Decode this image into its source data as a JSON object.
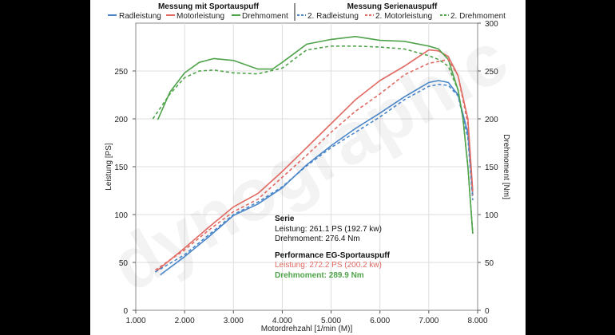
{
  "chart_data": {
    "type": "line",
    "title": "",
    "xlabel": "Motordrehzahl [1/min (M)]",
    "ylabel": "Leistung [PS]",
    "y2label": "Drehmoment [Nm]",
    "xlim": [
      1000,
      8000
    ],
    "ylim": [
      0,
      300
    ],
    "y2lim": [
      0,
      300
    ],
    "x_ticks": [
      "1.000",
      "2.000",
      "3.000",
      "4.000",
      "5.000",
      "6.000",
      "7.000",
      "8.000"
    ],
    "y_ticks": [
      "0",
      "50",
      "100",
      "150",
      "200",
      "250"
    ],
    "y2_ticks": [
      "0",
      "50",
      "100",
      "150",
      "200",
      "250",
      "300"
    ],
    "grid": true,
    "legend_groups": [
      {
        "title": "Messung mit Sportauspuff",
        "position": "top-left"
      },
      {
        "title": "Messung Serienauspuff",
        "position": "top-right"
      }
    ],
    "colors": {
      "rad": "#4a86c8",
      "motor": "#e06a62",
      "dreh": "#4fa34a"
    },
    "series": [
      {
        "name": "Radleistung",
        "axis": "left",
        "group": 0,
        "color": "#4a86c8",
        "dash": false,
        "x": [
          1500,
          2000,
          2500,
          3000,
          3500,
          4000,
          4500,
          5000,
          5500,
          6000,
          6500,
          7000,
          7200,
          7400,
          7600,
          7800,
          7900
        ],
        "y": [
          37,
          56,
          77,
          99,
          111,
          128,
          152,
          172,
          190,
          206,
          223,
          238,
          240,
          238,
          225,
          185,
          120
        ]
      },
      {
        "name": "Motorleistung",
        "axis": "left",
        "group": 0,
        "color": "#e06a62",
        "dash": false,
        "x": [
          1400,
          2000,
          2500,
          3000,
          3500,
          4000,
          4500,
          5000,
          5500,
          6000,
          6500,
          7000,
          7200,
          7400,
          7600,
          7800,
          7900
        ],
        "y": [
          40,
          65,
          87,
          108,
          122,
          145,
          170,
          195,
          220,
          240,
          255,
          272,
          271,
          265,
          245,
          200,
          125
        ]
      },
      {
        "name": "Drehmoment",
        "axis": "right",
        "group": 0,
        "color": "#4fa34a",
        "dash": false,
        "x": [
          1450,
          1700,
          2000,
          2300,
          2600,
          3000,
          3500,
          3800,
          4000,
          4500,
          5000,
          5500,
          6000,
          6500,
          7000,
          7200,
          7400,
          7600,
          7700,
          7800,
          7900
        ],
        "y": [
          199,
          228,
          248,
          259,
          263,
          261,
          252,
          252,
          259,
          278,
          283,
          286,
          282,
          281,
          276,
          273,
          262,
          230,
          200,
          150,
          80
        ]
      },
      {
        "name": "2. Radleistung",
        "axis": "left",
        "group": 1,
        "color": "#4a86c8",
        "dash": true,
        "x": [
          1400,
          2000,
          2500,
          3000,
          3500,
          4000,
          4500,
          5000,
          5500,
          6000,
          6500,
          7000,
          7200,
          7400,
          7600,
          7800,
          7900
        ],
        "y": [
          40,
          58,
          79,
          100,
          113,
          129,
          151,
          170,
          186,
          202,
          220,
          234,
          236,
          235,
          224,
          180,
          115
        ]
      },
      {
        "name": "2. Motorleistung",
        "axis": "left",
        "group": 1,
        "color": "#e06a62",
        "dash": true,
        "x": [
          1400,
          2000,
          2500,
          3000,
          3500,
          4000,
          4500,
          5000,
          5500,
          6000,
          6500,
          7000,
          7200,
          7400,
          7600,
          7800,
          7900
        ],
        "y": [
          42,
          63,
          84,
          103,
          116,
          139,
          162,
          186,
          208,
          226,
          246,
          258,
          260,
          262,
          245,
          195,
          120
        ]
      },
      {
        "name": "2. Drehmoment",
        "axis": "right",
        "group": 1,
        "color": "#4fa34a",
        "dash": true,
        "x": [
          1350,
          1700,
          2000,
          2300,
          2600,
          3000,
          3500,
          4000,
          4500,
          5000,
          5500,
          6000,
          6500,
          7000,
          7200,
          7400,
          7600,
          7700,
          7800,
          7900
        ],
        "y": [
          200,
          226,
          243,
          250,
          251,
          248,
          247,
          253,
          272,
          276,
          276,
          275,
          273,
          266,
          262,
          255,
          230,
          200,
          150,
          80
        ]
      }
    ]
  },
  "legend": {
    "group1_title": "Messung mit Sportauspuff",
    "group2_title": "Messung Serienauspuff",
    "items": [
      "Radleistung",
      "Motorleistung",
      "Drehmoment",
      "2. Radleistung",
      "2. Motorleistung",
      "2. Drehmoment"
    ]
  },
  "annotation": {
    "serie_title": "Serie",
    "serie_leistung": "Leistung: 261.1 PS (192.7 kw)",
    "serie_drehmoment": "Drehmoment: 276.4 Nm",
    "perf_title": "Performance EG-Sportauspuff",
    "perf_leistung": "Leistung: 272.2 PS (200.2 kw)",
    "perf_drehmoment": "Drehmoment: 289.9 Nm"
  },
  "watermark": "dynographic"
}
